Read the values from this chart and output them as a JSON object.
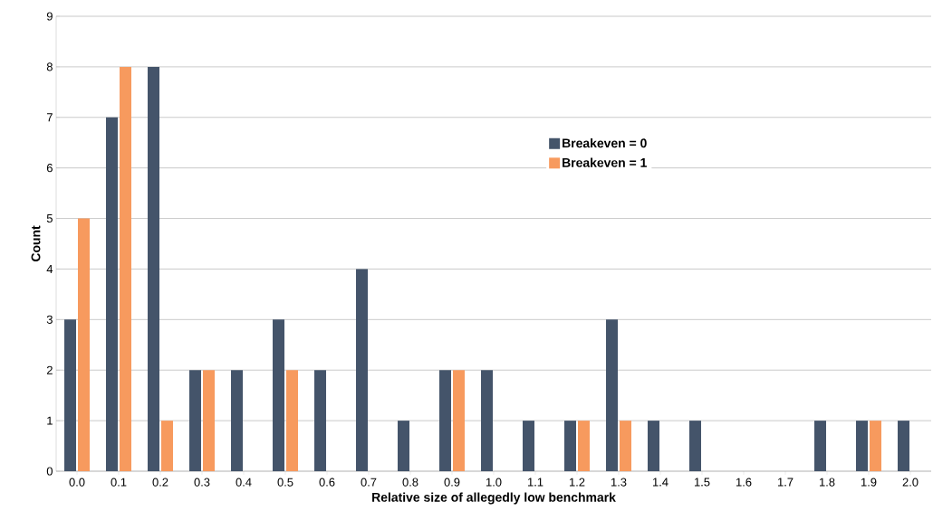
{
  "chart_data": {
    "type": "bar",
    "xlabel": "Relative size of allegedly low benchmark",
    "ylabel": "Count",
    "categories": [
      "0.0",
      "0.1",
      "0.2",
      "0.3",
      "0.4",
      "0.5",
      "0.6",
      "0.7",
      "0.8",
      "0.9",
      "1.0",
      "1.1",
      "1.2",
      "1.3",
      "1.4",
      "1.5",
      "1.6",
      "1.7",
      "1.8",
      "1.9",
      "2.0"
    ],
    "series": [
      {
        "name": "Breakeven = 0",
        "color": "#44546a",
        "values": [
          3,
          7,
          8,
          2,
          2,
          3,
          2,
          4,
          1,
          2,
          2,
          1,
          1,
          3,
          1,
          1,
          0,
          0,
          1,
          1,
          1
        ]
      },
      {
        "name": "Breakeven = 1",
        "color": "#f79a5e",
        "values": [
          5,
          8,
          1,
          2,
          0,
          2,
          0,
          0,
          0,
          2,
          0,
          0,
          1,
          1,
          0,
          0,
          0,
          0,
          0,
          1,
          0
        ]
      }
    ],
    "ylim": [
      0,
      9
    ],
    "yticks": [
      0,
      1,
      2,
      3,
      4,
      5,
      6,
      7,
      8,
      9
    ],
    "grid": "y",
    "legend": "top"
  }
}
